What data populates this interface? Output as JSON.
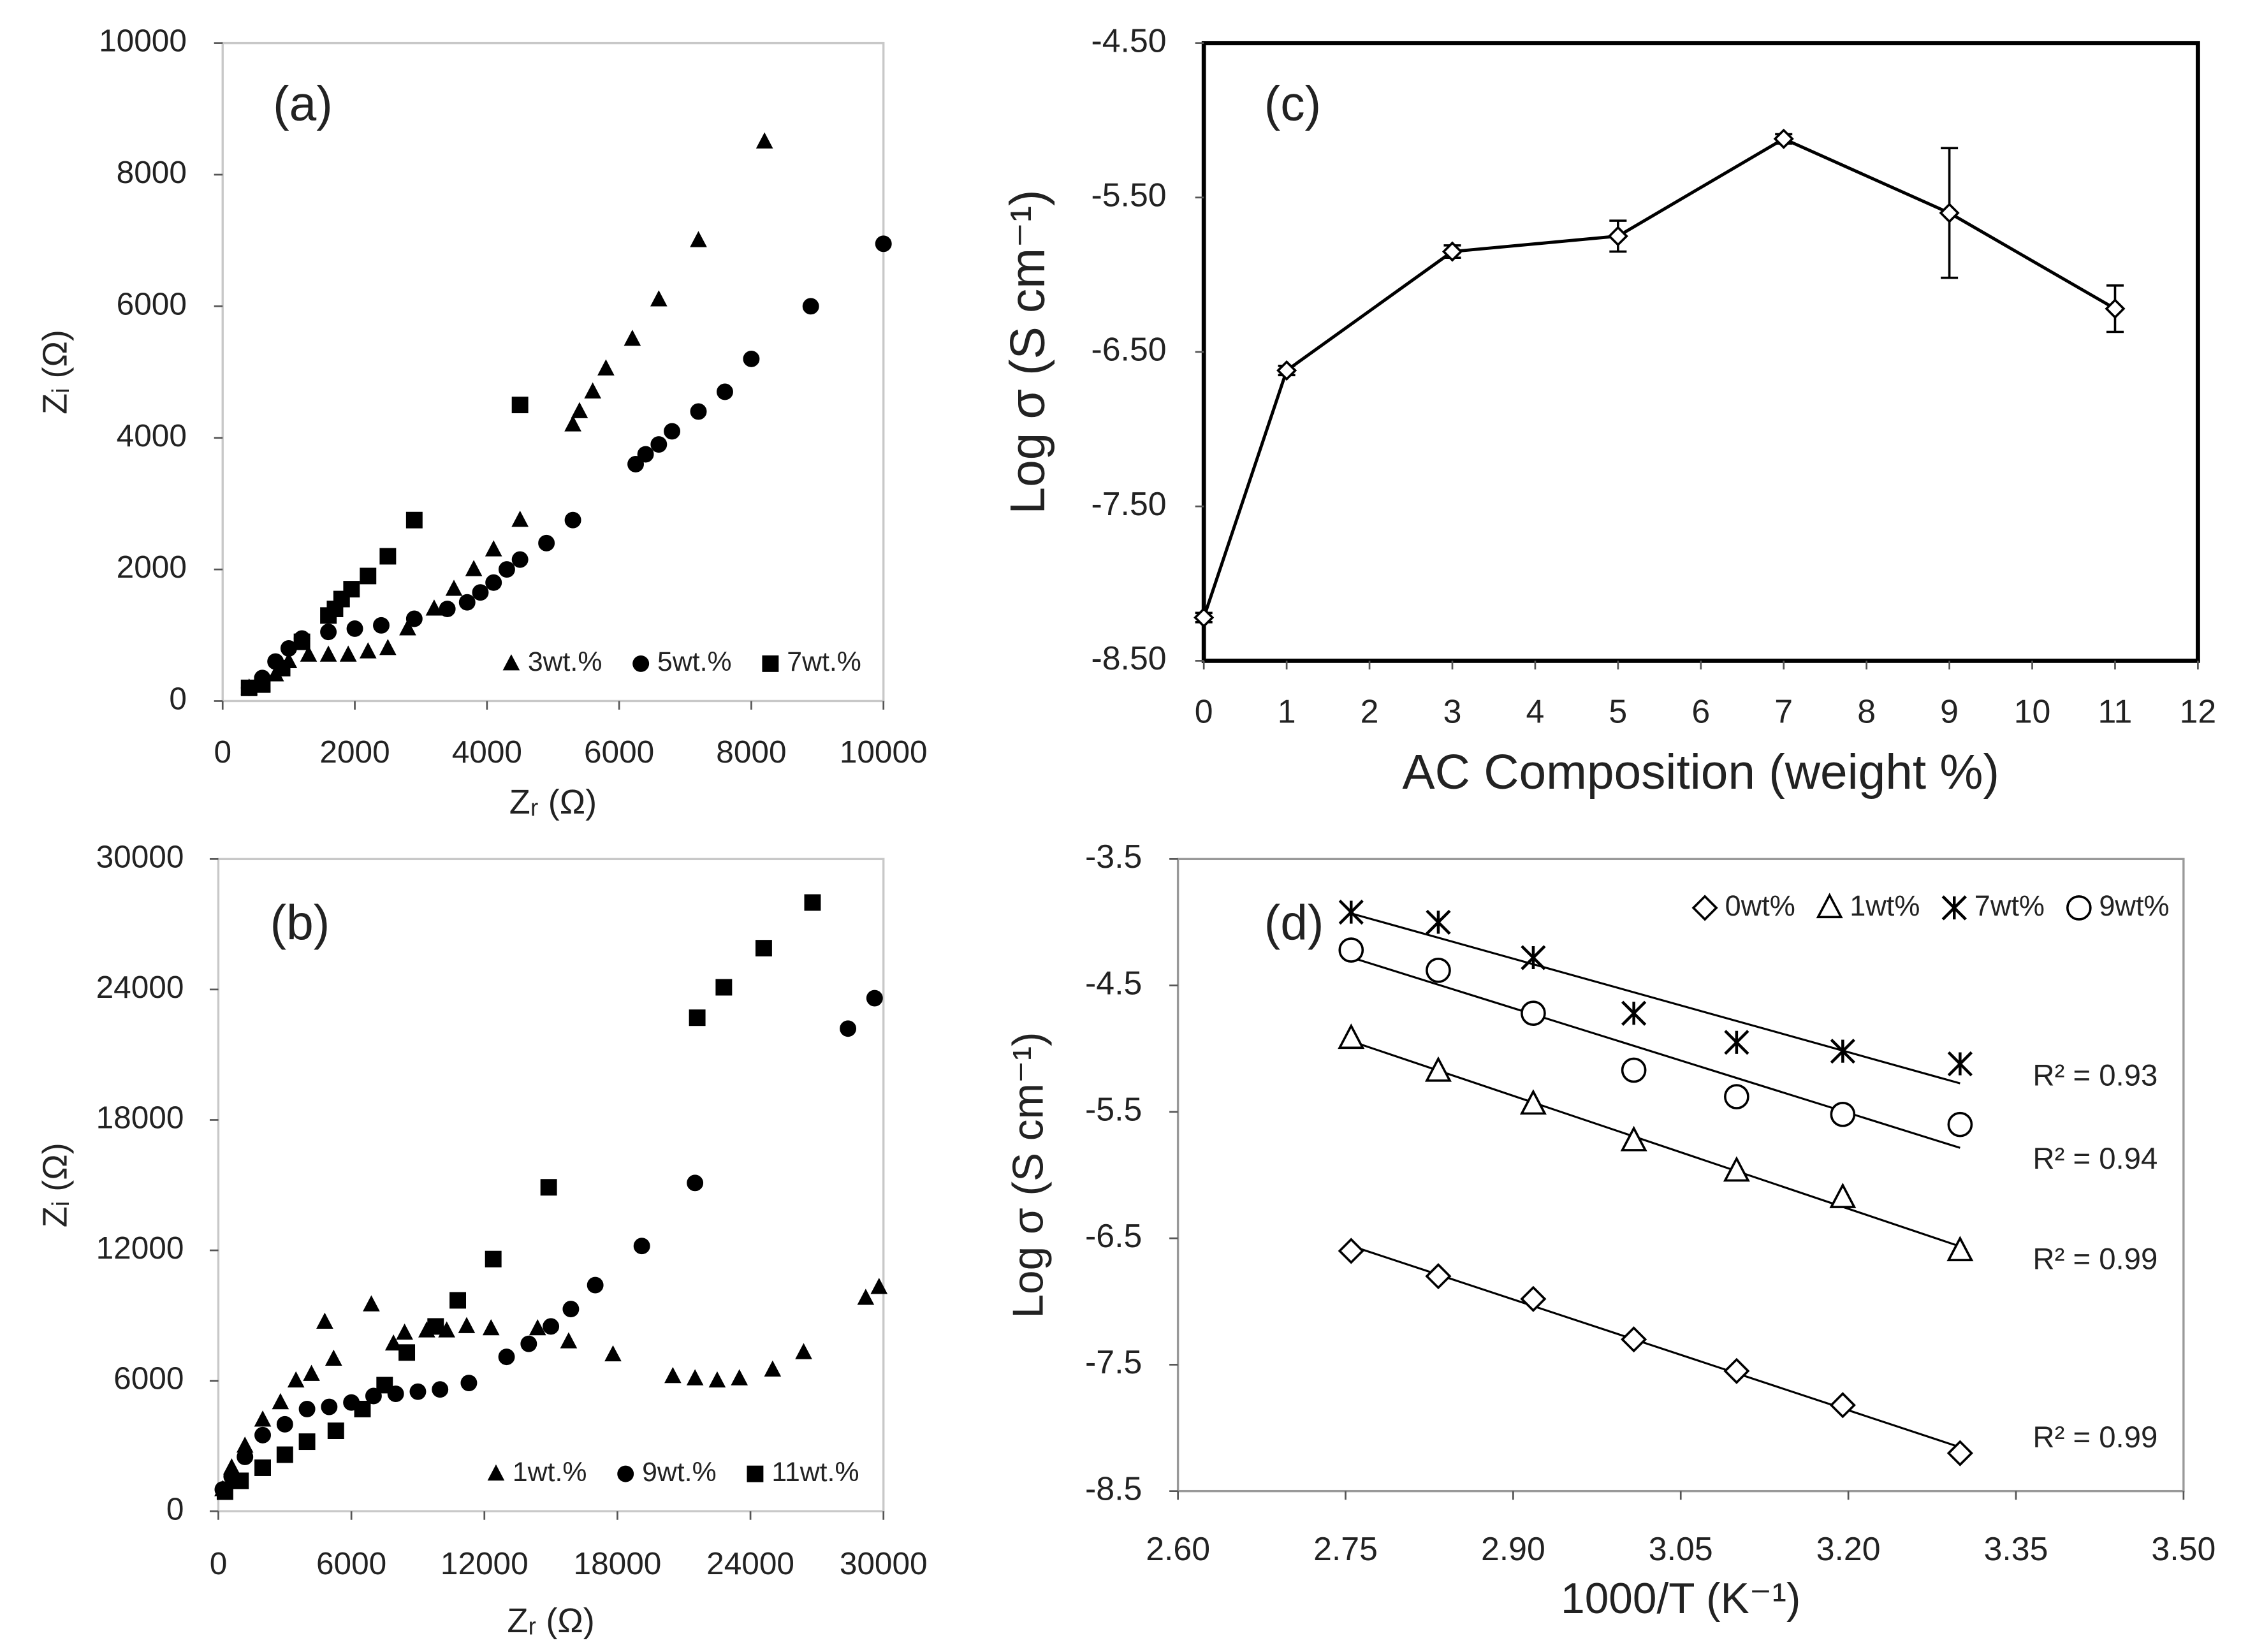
{
  "chart_data": [
    {
      "type": "scatter",
      "annotation": "(a)",
      "xlabel": "Zᵣ (Ω)",
      "ylabel": "Zᵢ (Ω)",
      "xlim": [
        0,
        10000
      ],
      "ylim": [
        0,
        10000
      ],
      "xticks": [
        0,
        2000,
        4000,
        6000,
        8000,
        10000
      ],
      "yticks": [
        0,
        2000,
        4000,
        6000,
        8000,
        10000
      ],
      "legend": "bottom-right",
      "series": [
        {
          "name": "3wt.%",
          "marker": "triangle",
          "color": "#000000",
          "x": [
            8200,
            7200,
            6600,
            6200,
            5800,
            5600,
            5400,
            5300,
            4500,
            4100,
            3800,
            3500,
            3200,
            2800,
            2500,
            2200,
            1900,
            1600,
            1300,
            1000,
            800,
            600,
            400
          ],
          "y": [
            8500,
            7000,
            6100,
            5500,
            5050,
            4700,
            4400,
            4200,
            2750,
            2300,
            2000,
            1700,
            1400,
            1100,
            800,
            750,
            700,
            700,
            700,
            600,
            400,
            250,
            200
          ]
        },
        {
          "name": "5wt.%",
          "marker": "circle",
          "color": "#000000",
          "x": [
            10000,
            8900,
            8000,
            7600,
            7200,
            6800,
            6600,
            6400,
            6250,
            5300,
            4900,
            4500,
            4300,
            4100,
            3900,
            3700,
            3400,
            2900,
            2400,
            2000,
            1600,
            1200,
            1000,
            800,
            600,
            400
          ],
          "y": [
            6950,
            6000,
            5200,
            4700,
            4400,
            4100,
            3900,
            3750,
            3600,
            2750,
            2400,
            2150,
            2000,
            1800,
            1650,
            1500,
            1400,
            1250,
            1150,
            1100,
            1050,
            950,
            800,
            600,
            350,
            200
          ]
        },
        {
          "name": "7wt.%",
          "marker": "square",
          "color": "#000000",
          "x": [
            4500,
            2900,
            2500,
            2200,
            1950,
            1800,
            1700,
            1600,
            1200,
            900,
            600,
            400
          ],
          "y": [
            4500,
            2750,
            2200,
            1900,
            1700,
            1550,
            1400,
            1300,
            900,
            500,
            250,
            200
          ]
        }
      ]
    },
    {
      "type": "scatter",
      "annotation": "(b)",
      "xlabel": "Zᵣ (Ω)",
      "ylabel": "Zᵢ (Ω)",
      "xlim": [
        0,
        30000
      ],
      "ylim": [
        0,
        30000
      ],
      "xticks": [
        0,
        6000,
        12000,
        18000,
        24000,
        30000
      ],
      "yticks": [
        0,
        6000,
        12000,
        18000,
        24000,
        30000
      ],
      "legend": "bottom-right",
      "series": [
        {
          "name": "1wt.%",
          "marker": "triangle",
          "color": "#000000",
          "x": [
            29800,
            29200,
            26400,
            25000,
            23500,
            22500,
            21500,
            20500,
            17800,
            15800,
            14400,
            12300,
            11200,
            10300,
            9400,
            8400,
            7900,
            6900,
            5200,
            4800,
            4200,
            3500,
            2800,
            2000,
            1200,
            600,
            200
          ],
          "y": [
            10300,
            9800,
            7300,
            6500,
            6100,
            6000,
            6100,
            6200,
            7200,
            7800,
            8400,
            8400,
            8500,
            8300,
            8300,
            8200,
            7700,
            9500,
            7000,
            8700,
            6300,
            6000,
            5000,
            4200,
            3000,
            2000,
            1000
          ]
        },
        {
          "name": "9wt.%",
          "marker": "circle",
          "color": "#000000",
          "x": [
            29600,
            28400,
            21500,
            19100,
            17000,
            15900,
            15000,
            14000,
            13000,
            11300,
            10000,
            9000,
            8000,
            7000,
            6000,
            5000,
            4000,
            3000,
            2000,
            1200,
            600,
            200
          ],
          "y": [
            23600,
            22200,
            15100,
            12200,
            10400,
            9300,
            8500,
            7700,
            7100,
            5900,
            5600,
            5500,
            5400,
            5300,
            5000,
            4800,
            4700,
            4000,
            3500,
            2500,
            1600,
            1000
          ]
        },
        {
          "name": "11wt.%",
          "marker": "square",
          "color": "#000000",
          "x": [
            26800,
            24600,
            22800,
            21600,
            14900,
            12400,
            10800,
            9800,
            8500,
            7500,
            6500,
            5300,
            4000,
            3000,
            2000,
            1000,
            300
          ],
          "y": [
            28000,
            25900,
            24100,
            22700,
            14900,
            11600,
            9700,
            8500,
            7300,
            5800,
            4700,
            3700,
            3200,
            2600,
            2000,
            1400,
            900
          ]
        }
      ]
    },
    {
      "type": "line",
      "annotation": "(c)",
      "xlabel": "AC Composition (weight %)",
      "ylabel": "Log σ (S cm⁻¹)",
      "marker": "diamond-open",
      "color": "#000000",
      "x": [
        0,
        1,
        3,
        5,
        7,
        9,
        11
      ],
      "values": [
        -8.22,
        -6.62,
        -5.85,
        -5.75,
        -5.12,
        -5.6,
        -6.22
      ],
      "errors": [
        0.03,
        0.03,
        0.04,
        0.1,
        0.03,
        0.42,
        0.15
      ],
      "xlim": [
        0,
        12
      ],
      "ylim": [
        -8.5,
        -4.5
      ],
      "xticks": [
        0,
        1,
        2,
        3,
        4,
        5,
        6,
        7,
        8,
        9,
        10,
        11,
        12
      ],
      "yticks": [
        {
          "value": -8.5,
          "label": "-8.50"
        },
        {
          "value": -7.5,
          "label": "-7.50"
        },
        {
          "value": -6.5,
          "label": "-6.50"
        },
        {
          "value": -5.5,
          "label": "-5.50"
        },
        {
          "value": -4.5,
          "label": "-4.50"
        }
      ]
    },
    {
      "type": "scatter",
      "annotation": "(d)",
      "xlabel": "1000/T (K⁻¹)",
      "ylabel": "Log σ (S cm⁻¹)",
      "xlim": [
        2.6,
        3.5
      ],
      "ylim": [
        -8.5,
        -3.5
      ],
      "xticks": [
        {
          "value": 2.6,
          "label": "2.60"
        },
        {
          "value": 2.75,
          "label": "2.75"
        },
        {
          "value": 2.9,
          "label": "2.90"
        },
        {
          "value": 3.05,
          "label": "3.05"
        },
        {
          "value": 3.2,
          "label": "3.20"
        },
        {
          "value": 3.35,
          "label": "3.35"
        },
        {
          "value": 3.5,
          "label": "3.50"
        }
      ],
      "yticks": [
        -8.5,
        -7.5,
        -6.5,
        -5.5,
        -4.5,
        -3.5
      ],
      "legend": "top-right",
      "trendline": "linear",
      "series": [
        {
          "name": "0wt%",
          "marker": "diamond-open",
          "color": "#000000",
          "r2_label": "R² = 0.99",
          "x": [
            2.755,
            2.833,
            2.918,
            3.008,
            3.1,
            3.195,
            3.3
          ],
          "y": [
            -6.6,
            -6.8,
            -6.98,
            -7.3,
            -7.55,
            -7.82,
            -8.2
          ]
        },
        {
          "name": "1wt%",
          "marker": "triangle-open",
          "color": "#000000",
          "r2_label": "R² = 0.99",
          "x": [
            2.755,
            2.833,
            2.918,
            3.008,
            3.1,
            3.195,
            3.3
          ],
          "y": [
            -4.92,
            -5.18,
            -5.44,
            -5.73,
            -5.97,
            -6.18,
            -6.6
          ]
        },
        {
          "name": "7wt%",
          "marker": "asterisk",
          "color": "#000000",
          "r2_label": "R² = 0.93",
          "x": [
            2.755,
            2.833,
            2.918,
            3.008,
            3.1,
            3.195,
            3.3
          ],
          "y": [
            -3.92,
            -4.0,
            -4.28,
            -4.72,
            -4.95,
            -5.02,
            -5.12
          ]
        },
        {
          "name": "9wt%",
          "marker": "circle-open",
          "color": "#000000",
          "r2_label": "R² = 0.94",
          "x": [
            2.755,
            2.833,
            2.918,
            3.008,
            3.1,
            3.195,
            3.3
          ],
          "y": [
            -4.22,
            -4.38,
            -4.72,
            -5.17,
            -5.38,
            -5.52,
            -5.6
          ]
        }
      ]
    }
  ]
}
